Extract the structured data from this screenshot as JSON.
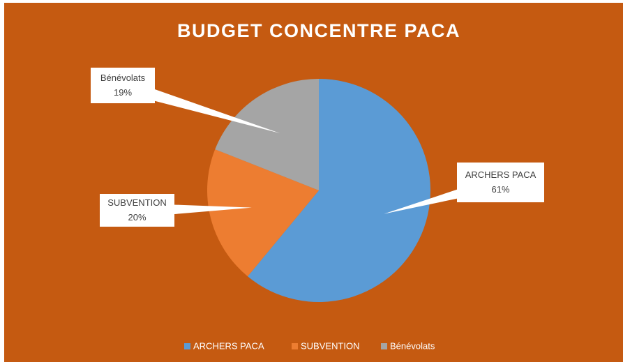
{
  "chart_data": {
    "type": "pie",
    "title": "BUDGET CONCENTRE PACA",
    "categories": [
      "ARCHERS PACA",
      "SUBVENTION",
      "Bénévolats"
    ],
    "values": [
      61,
      20,
      19
    ],
    "value_labels": [
      "61%",
      "20%",
      "19%"
    ],
    "colors": [
      "#5b9bd5",
      "#ed7d31",
      "#a5a5a5"
    ],
    "legend": "bottom"
  }
}
